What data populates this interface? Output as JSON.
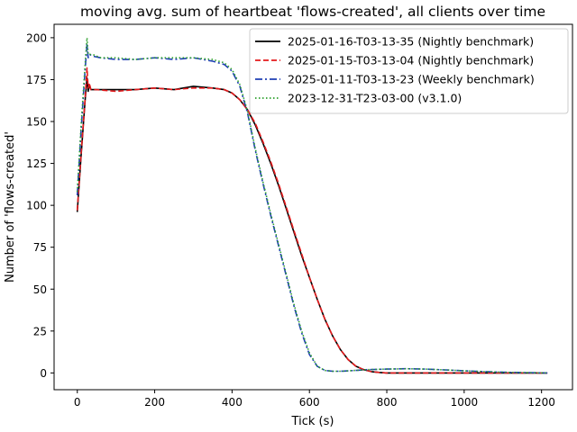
{
  "chart_data": {
    "type": "line",
    "title": "moving avg. sum of heartbeat 'flows-created', all clients over time",
    "xlabel": "Tick (s)",
    "ylabel": "Number of 'flows-created'",
    "xlim": [
      -60,
      1280
    ],
    "ylim": [
      -10,
      208
    ],
    "xticks": [
      0,
      200,
      400,
      600,
      800,
      1000,
      1200
    ],
    "yticks": [
      0,
      25,
      50,
      75,
      100,
      125,
      150,
      175,
      200
    ],
    "grid": false,
    "legend_position": "top-right",
    "series": [
      {
        "name": "2025-01-16-T03-13-35 (Nightly benchmark)",
        "color": "#000000",
        "dash": "solid",
        "x": [
          0,
          10,
          20,
          25,
          28,
          31,
          35,
          50,
          100,
          150,
          200,
          250,
          300,
          350,
          380,
          400,
          420,
          440,
          460,
          480,
          500,
          520,
          540,
          560,
          580,
          600,
          620,
          640,
          660,
          680,
          700,
          720,
          740,
          760,
          780,
          800,
          850,
          900,
          1000,
          1100,
          1215
        ],
        "y": [
          96,
          130,
          162,
          176,
          168,
          172,
          169,
          169,
          169,
          169,
          170,
          169,
          171,
          170,
          169,
          167,
          163,
          157,
          148,
          137,
          125,
          112,
          98,
          84,
          70,
          57,
          44,
          32,
          22,
          14,
          8,
          4,
          2,
          0.8,
          0.3,
          0,
          0,
          0,
          0,
          0,
          0
        ]
      },
      {
        "name": "2025-01-15-T03-13-04 (Nightly benchmark)",
        "color": "#e41a1c",
        "dash": "dashed",
        "x": [
          0,
          10,
          20,
          25,
          28,
          31,
          35,
          50,
          100,
          150,
          200,
          250,
          300,
          350,
          380,
          400,
          420,
          440,
          460,
          480,
          500,
          520,
          540,
          560,
          580,
          600,
          620,
          640,
          660,
          680,
          700,
          720,
          740,
          760,
          780,
          800,
          850,
          900,
          1000,
          1100,
          1215
        ],
        "y": [
          97,
          131,
          163,
          182,
          170,
          173,
          169,
          169,
          168,
          169,
          170,
          169,
          170,
          170,
          169,
          167,
          163,
          157,
          149,
          138,
          126,
          113,
          99,
          85,
          71,
          57,
          44,
          32,
          22,
          14,
          8,
          4,
          2,
          0.8,
          0.3,
          0,
          0,
          0,
          0,
          0,
          0
        ]
      },
      {
        "name": "2025-01-11-T03-13-23 (Weekly benchmark)",
        "color": "#1f3fb4",
        "dash": "dashdot",
        "x": [
          0,
          10,
          20,
          25,
          28,
          32,
          40,
          60,
          100,
          150,
          200,
          250,
          300,
          350,
          380,
          400,
          420,
          440,
          460,
          480,
          500,
          520,
          540,
          560,
          580,
          600,
          620,
          640,
          660,
          680,
          700,
          750,
          800,
          850,
          900,
          950,
          1000,
          1050,
          1100,
          1150,
          1215
        ],
        "y": [
          106,
          145,
          180,
          196,
          188,
          190,
          189,
          188,
          187,
          187,
          188,
          187,
          188,
          186,
          184,
          180,
          171,
          155,
          133,
          113,
          94,
          76,
          58,
          40,
          24,
          11,
          4,
          1.5,
          1,
          1,
          1.2,
          2,
          2.3,
          2.5,
          2.3,
          1.8,
          1.3,
          0.8,
          0.4,
          0.2,
          0
        ]
      },
      {
        "name": "2023-12-31-T23-03-00 (v3.1.0)",
        "color": "#2ca02c",
        "dash": "dotted",
        "x": [
          0,
          10,
          20,
          25,
          28,
          32,
          40,
          60,
          100,
          150,
          200,
          250,
          300,
          350,
          380,
          400,
          420,
          440,
          460,
          480,
          500,
          520,
          540,
          560,
          580,
          600,
          620,
          640,
          660,
          680,
          700,
          750,
          800,
          850,
          900,
          950,
          1000,
          1050,
          1100,
          1150,
          1215
        ],
        "y": [
          108,
          148,
          183,
          200,
          190,
          190,
          190,
          188,
          188,
          187,
          188,
          188,
          188,
          187,
          185,
          181,
          172,
          156,
          134,
          114,
          95,
          77,
          59,
          41,
          25,
          12,
          4,
          1.5,
          1,
          1,
          1.2,
          2,
          2.3,
          2.5,
          2.3,
          1.8,
          1.3,
          0.8,
          0.4,
          0.2,
          0
        ]
      }
    ]
  }
}
